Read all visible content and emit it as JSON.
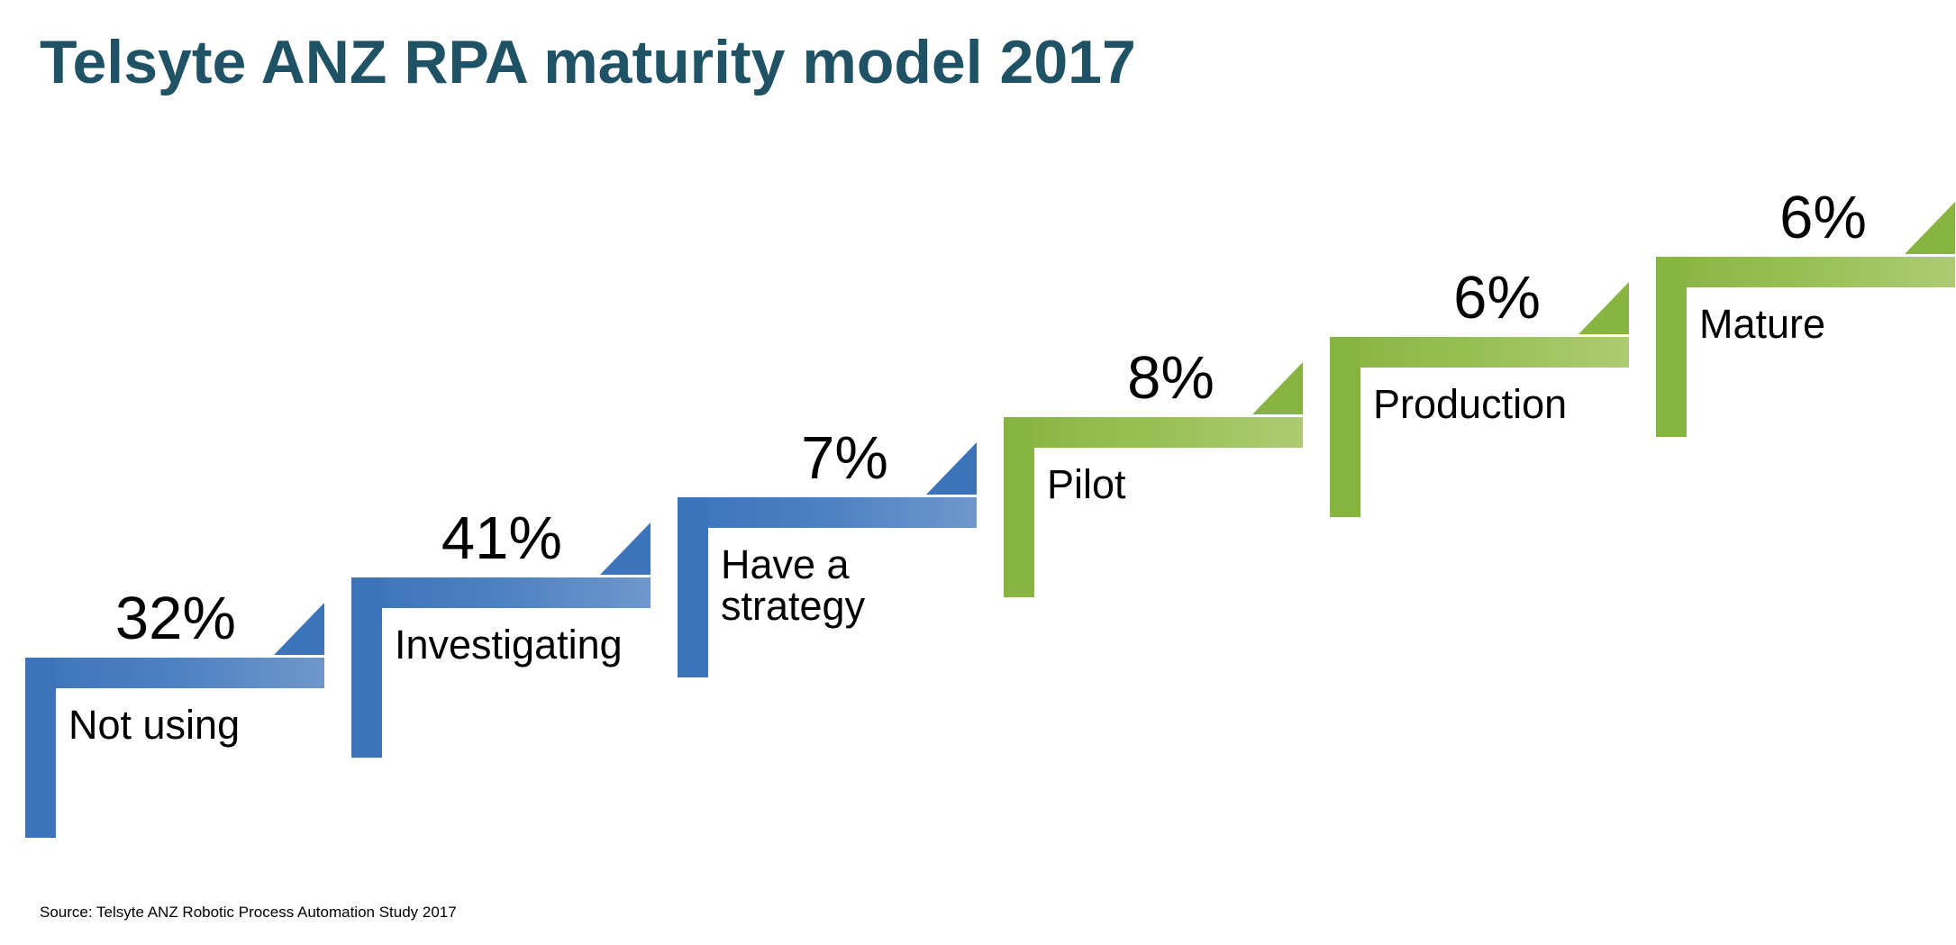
{
  "title": "Telsyte ANZ RPA maturity model 2017",
  "source": "Source: Telsyte ANZ Robotic Process Automation Study 2017",
  "colors": {
    "title": "#1f5264",
    "blue": "#3d74b9",
    "green": "#88b442"
  },
  "stages": [
    {
      "label": "Not using",
      "percent": "32%",
      "color": "blue"
    },
    {
      "label": "Investigating",
      "percent": "41%",
      "color": "blue"
    },
    {
      "label": "Have a strategy",
      "percent": "7%",
      "color": "blue"
    },
    {
      "label": "Pilot",
      "percent": "8%",
      "color": "green"
    },
    {
      "label": "Production",
      "percent": "6%",
      "color": "green"
    },
    {
      "label": "Mature",
      "percent": "6%",
      "color": "green"
    }
  ]
}
